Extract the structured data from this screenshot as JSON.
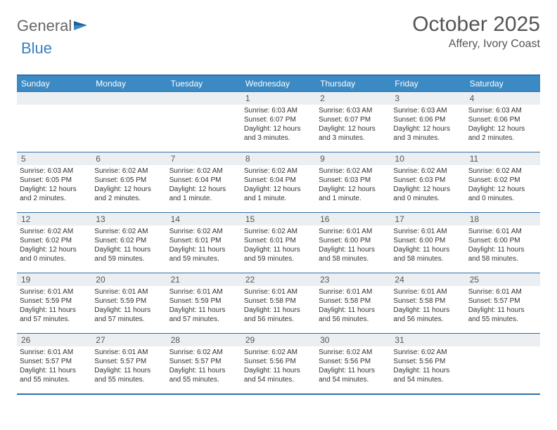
{
  "logo": {
    "part1": "General",
    "part2": "Blue"
  },
  "title": "October 2025",
  "location": "Affery, Ivory Coast",
  "colors": {
    "header_bg": "#3b8ac4",
    "header_text": "#ffffff",
    "border": "#2f6fa8",
    "daynum_bg": "#eceff1",
    "text": "#333333",
    "logo_gray": "#666666",
    "logo_blue": "#3b7fbf"
  },
  "daysOfWeek": [
    "Sunday",
    "Monday",
    "Tuesday",
    "Wednesday",
    "Thursday",
    "Friday",
    "Saturday"
  ],
  "weeks": [
    [
      null,
      null,
      null,
      {
        "n": "1",
        "sr": "6:03 AM",
        "ss": "6:07 PM",
        "dl": "12 hours and 3 minutes."
      },
      {
        "n": "2",
        "sr": "6:03 AM",
        "ss": "6:07 PM",
        "dl": "12 hours and 3 minutes."
      },
      {
        "n": "3",
        "sr": "6:03 AM",
        "ss": "6:06 PM",
        "dl": "12 hours and 3 minutes."
      },
      {
        "n": "4",
        "sr": "6:03 AM",
        "ss": "6:06 PM",
        "dl": "12 hours and 2 minutes."
      }
    ],
    [
      {
        "n": "5",
        "sr": "6:03 AM",
        "ss": "6:05 PM",
        "dl": "12 hours and 2 minutes."
      },
      {
        "n": "6",
        "sr": "6:02 AM",
        "ss": "6:05 PM",
        "dl": "12 hours and 2 minutes."
      },
      {
        "n": "7",
        "sr": "6:02 AM",
        "ss": "6:04 PM",
        "dl": "12 hours and 1 minute."
      },
      {
        "n": "8",
        "sr": "6:02 AM",
        "ss": "6:04 PM",
        "dl": "12 hours and 1 minute."
      },
      {
        "n": "9",
        "sr": "6:02 AM",
        "ss": "6:03 PM",
        "dl": "12 hours and 1 minute."
      },
      {
        "n": "10",
        "sr": "6:02 AM",
        "ss": "6:03 PM",
        "dl": "12 hours and 0 minutes."
      },
      {
        "n": "11",
        "sr": "6:02 AM",
        "ss": "6:02 PM",
        "dl": "12 hours and 0 minutes."
      }
    ],
    [
      {
        "n": "12",
        "sr": "6:02 AM",
        "ss": "6:02 PM",
        "dl": "12 hours and 0 minutes."
      },
      {
        "n": "13",
        "sr": "6:02 AM",
        "ss": "6:02 PM",
        "dl": "11 hours and 59 minutes."
      },
      {
        "n": "14",
        "sr": "6:02 AM",
        "ss": "6:01 PM",
        "dl": "11 hours and 59 minutes."
      },
      {
        "n": "15",
        "sr": "6:02 AM",
        "ss": "6:01 PM",
        "dl": "11 hours and 59 minutes."
      },
      {
        "n": "16",
        "sr": "6:01 AM",
        "ss": "6:00 PM",
        "dl": "11 hours and 58 minutes."
      },
      {
        "n": "17",
        "sr": "6:01 AM",
        "ss": "6:00 PM",
        "dl": "11 hours and 58 minutes."
      },
      {
        "n": "18",
        "sr": "6:01 AM",
        "ss": "6:00 PM",
        "dl": "11 hours and 58 minutes."
      }
    ],
    [
      {
        "n": "19",
        "sr": "6:01 AM",
        "ss": "5:59 PM",
        "dl": "11 hours and 57 minutes."
      },
      {
        "n": "20",
        "sr": "6:01 AM",
        "ss": "5:59 PM",
        "dl": "11 hours and 57 minutes."
      },
      {
        "n": "21",
        "sr": "6:01 AM",
        "ss": "5:59 PM",
        "dl": "11 hours and 57 minutes."
      },
      {
        "n": "22",
        "sr": "6:01 AM",
        "ss": "5:58 PM",
        "dl": "11 hours and 56 minutes."
      },
      {
        "n": "23",
        "sr": "6:01 AM",
        "ss": "5:58 PM",
        "dl": "11 hours and 56 minutes."
      },
      {
        "n": "24",
        "sr": "6:01 AM",
        "ss": "5:58 PM",
        "dl": "11 hours and 56 minutes."
      },
      {
        "n": "25",
        "sr": "6:01 AM",
        "ss": "5:57 PM",
        "dl": "11 hours and 55 minutes."
      }
    ],
    [
      {
        "n": "26",
        "sr": "6:01 AM",
        "ss": "5:57 PM",
        "dl": "11 hours and 55 minutes."
      },
      {
        "n": "27",
        "sr": "6:01 AM",
        "ss": "5:57 PM",
        "dl": "11 hours and 55 minutes."
      },
      {
        "n": "28",
        "sr": "6:02 AM",
        "ss": "5:57 PM",
        "dl": "11 hours and 55 minutes."
      },
      {
        "n": "29",
        "sr": "6:02 AM",
        "ss": "5:56 PM",
        "dl": "11 hours and 54 minutes."
      },
      {
        "n": "30",
        "sr": "6:02 AM",
        "ss": "5:56 PM",
        "dl": "11 hours and 54 minutes."
      },
      {
        "n": "31",
        "sr": "6:02 AM",
        "ss": "5:56 PM",
        "dl": "11 hours and 54 minutes."
      },
      null
    ]
  ],
  "labels": {
    "sunrise": "Sunrise:",
    "sunset": "Sunset:",
    "daylight": "Daylight:"
  }
}
